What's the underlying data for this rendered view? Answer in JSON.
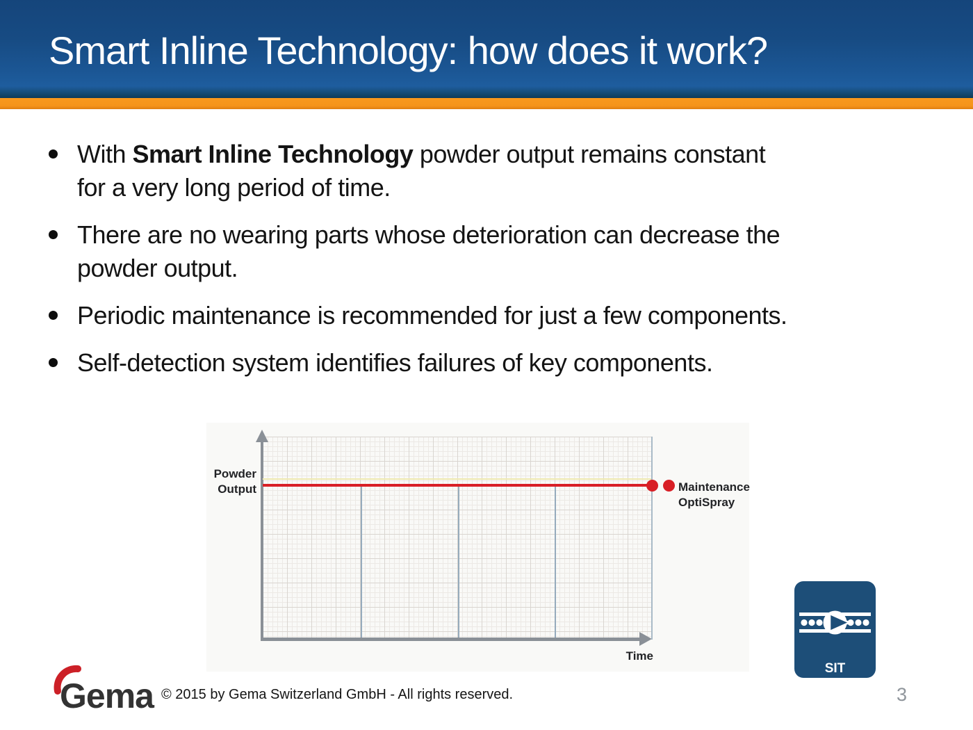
{
  "header": {
    "title": "Smart Inline Technology: how does it work?"
  },
  "bullets": {
    "items": [
      {
        "lines": [
          [
            {
              "text": "With ",
              "bold": false
            },
            {
              "text": "Smart Inline Technology",
              "bold": true
            },
            {
              "text": " powder output remains constant",
              "bold": false
            }
          ],
          [
            {
              "text": "for a very long period of time.",
              "bold": false
            }
          ]
        ]
      },
      {
        "lines": [
          [
            {
              "text": "There are no wearing parts whose deterioration can decrease the",
              "bold": false
            }
          ],
          [
            {
              "text": "powder output.",
              "bold": false
            }
          ]
        ]
      },
      {
        "lines": [
          [
            {
              "text": "Periodic maintenance is recommended for just a few components.",
              "bold": false
            }
          ]
        ]
      },
      {
        "lines": [
          [
            {
              "text": "Self-detection system identifies failures of key components.",
              "bold": false
            }
          ]
        ]
      }
    ]
  },
  "chart": {
    "y_label_line1": "Powder",
    "y_label_line2": "Output",
    "x_label": "Time",
    "legend_line1": "Maintenance",
    "legend_line2": "OptiSpray"
  },
  "chart_data": {
    "type": "line",
    "title": "",
    "xlabel": "Time",
    "ylabel": "Powder Output",
    "x": [
      0,
      1,
      2,
      3,
      4
    ],
    "series": [
      {
        "name": "OptiSpray powder output",
        "values": [
          0.75,
          0.75,
          0.75,
          0.75,
          0.75
        ],
        "note": "constant horizontal red line over entire time axis, red dot marker at end"
      }
    ],
    "annotations": [
      "Maintenance OptiSpray marker (red dot) at end of constant line"
    ],
    "vertical_dividers_x": [
      1,
      2,
      3,
      4
    ],
    "axis_ranges": {
      "x": [
        0,
        4.5
      ],
      "y": [
        0,
        1
      ]
    },
    "grid": true,
    "legend_position": "right",
    "colors": {
      "line": "#d81f26",
      "axis": "#8a9097",
      "divider": "#96abbc"
    }
  },
  "sit_badge": {
    "label": "SIT"
  },
  "footer": {
    "logo_text": "Gema",
    "copyright": "© 2015 by Gema Switzerland GmbH - All rights reserved.",
    "page_number": "3"
  },
  "colors": {
    "header_blue": "#174b83",
    "accent_orange": "#f5941a",
    "line_red": "#d81f26",
    "sit_blue": "#1d4e78",
    "logo_red": "#cc2027"
  }
}
